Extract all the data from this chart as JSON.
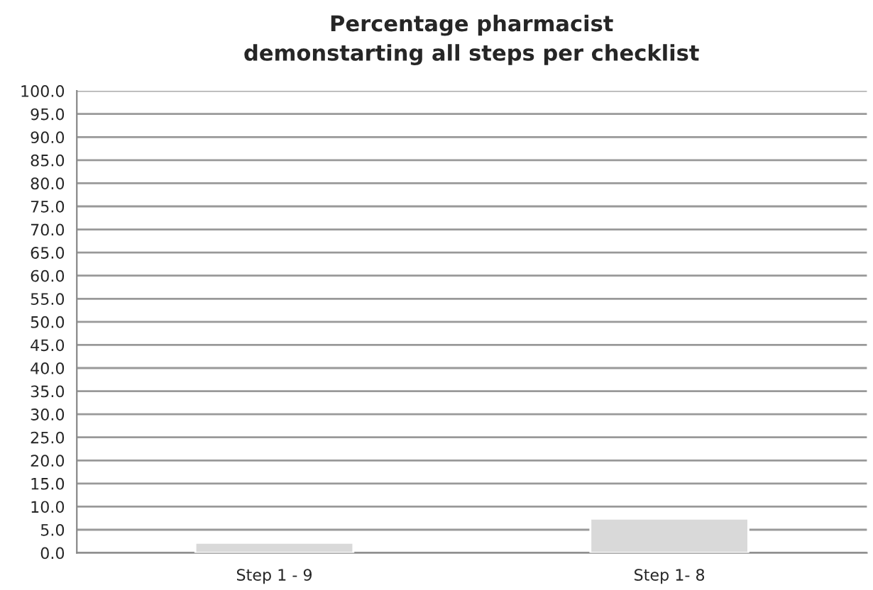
{
  "chart_data": {
    "type": "bar",
    "title": "Percentage pharmacist\ndemonstarting all steps per checklist",
    "categories": [
      "Step 1 - 9",
      "Step 1- 8"
    ],
    "values": [
      2.2,
      7.4
    ],
    "color": "#d9d9d9",
    "ylim": [
      0,
      100
    ],
    "yticks": [
      {
        "value": 0,
        "label": "0.0"
      },
      {
        "value": 5,
        "label": "5.0"
      },
      {
        "value": 10,
        "label": "10.0"
      },
      {
        "value": 15,
        "label": "15.0"
      },
      {
        "value": 20,
        "label": "20.0"
      },
      {
        "value": 25,
        "label": "25.0"
      },
      {
        "value": 30,
        "label": "30.0"
      },
      {
        "value": 35,
        "label": "35.0"
      },
      {
        "value": 40,
        "label": "40.0"
      },
      {
        "value": 45,
        "label": "45.0"
      },
      {
        "value": 50,
        "label": "50.0"
      },
      {
        "value": 55,
        "label": "55.0"
      },
      {
        "value": 60,
        "label": "60.0"
      },
      {
        "value": 65,
        "label": "65.0"
      },
      {
        "value": 70,
        "label": "70.0"
      },
      {
        "value": 75,
        "label": "75.0"
      },
      {
        "value": 80,
        "label": "80.0"
      },
      {
        "value": 85,
        "label": "85.0"
      },
      {
        "value": 90,
        "label": "90.0"
      },
      {
        "value": 95,
        "label": "95.0"
      },
      {
        "value": 100,
        "label": "100.0"
      }
    ],
    "grid": "y"
  }
}
